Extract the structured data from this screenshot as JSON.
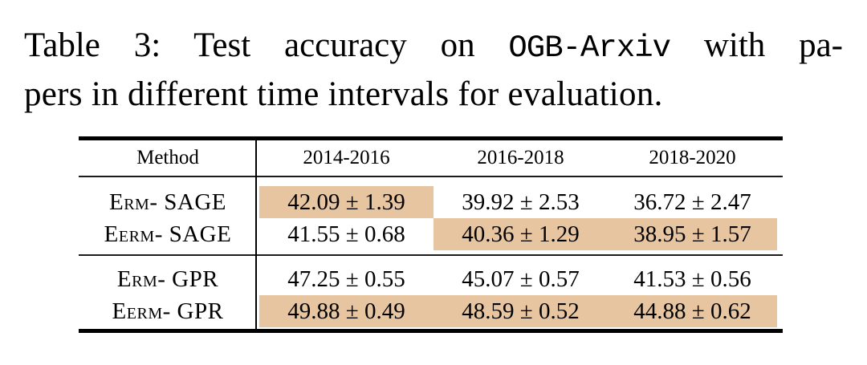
{
  "caption": {
    "line1_pre": "Table 3:  Test accuracy on",
    "dataset": "OGB-Arxiv",
    "line1_post": "with pa-",
    "line2": "pers in different time intervals for evaluation."
  },
  "table": {
    "columns": [
      "Method",
      "2014-2016",
      "2016-2018",
      "2018-2020"
    ],
    "highlight_color": "#e7c5a1",
    "sections": [
      {
        "rows": [
          {
            "method": "Erm- SAGE",
            "values": [
              "42.09 ± 1.39",
              "39.92 ± 2.53",
              "36.72 ± 2.47"
            ],
            "highlighted": [
              true,
              false,
              false
            ]
          },
          {
            "method": "Eerm- SAGE",
            "values": [
              "41.55 ± 0.68",
              "40.36 ± 1.29",
              "38.95 ± 1.57"
            ],
            "highlighted": [
              false,
              true,
              true
            ]
          }
        ]
      },
      {
        "rows": [
          {
            "method": "Erm- GPR",
            "values": [
              "47.25 ± 0.55",
              "45.07 ± 0.57",
              "41.53 ± 0.56"
            ],
            "highlighted": [
              false,
              false,
              false
            ]
          },
          {
            "method": "Eerm- GPR",
            "values": [
              "49.88 ± 0.49",
              "48.59 ± 0.52",
              "44.88 ± 0.62"
            ],
            "highlighted": [
              true,
              true,
              true
            ]
          }
        ]
      }
    ]
  }
}
